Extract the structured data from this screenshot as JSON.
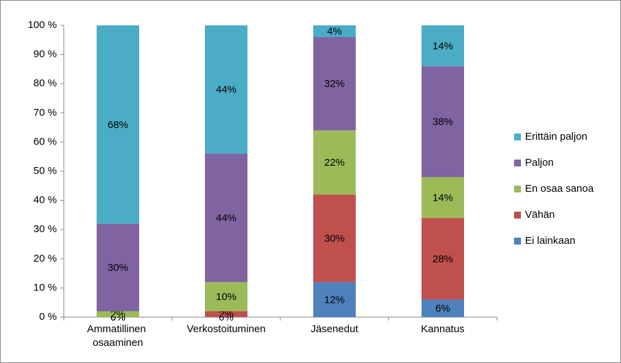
{
  "chart_data": {
    "type": "stacked_bar",
    "categories": [
      "Ammatillinen osaaminen",
      "Verkostoituminen",
      "Jäsenedut",
      "Kannatus"
    ],
    "series": [
      {
        "name": "Ei lainkaan",
        "color": "#4f81bd",
        "values": [
          0,
          0,
          12,
          6
        ],
        "value_labels": [
          "0%",
          "0%",
          "12%",
          "6%"
        ]
      },
      {
        "name": "Vähän",
        "color": "#c0504d",
        "values": [
          0,
          2,
          30,
          28
        ],
        "value_labels": [
          "0%",
          "2%",
          "30%",
          "28%"
        ]
      },
      {
        "name": "En osaa sanoa",
        "color": "#9bbb59",
        "values": [
          2,
          10,
          22,
          14
        ],
        "value_labels": [
          "2%",
          "10%",
          "22%",
          "14%"
        ]
      },
      {
        "name": "Paljon",
        "color": "#8064a2",
        "values": [
          30,
          44,
          32,
          38
        ],
        "value_labels": [
          "30%",
          "44%",
          "32%",
          "38%"
        ]
      },
      {
        "name": "Erittäin paljon",
        "color": "#4bacc6",
        "values": [
          68,
          44,
          4,
          14
        ],
        "value_labels": [
          "68%",
          "44%",
          "4%",
          "14%"
        ]
      }
    ],
    "ylim": [
      0,
      100
    ],
    "yticks": [
      {
        "value": 0,
        "label": "0 %"
      },
      {
        "value": 10,
        "label": "10 %"
      },
      {
        "value": 20,
        "label": "20 %"
      },
      {
        "value": 30,
        "label": "30 %"
      },
      {
        "value": 40,
        "label": "40 %"
      },
      {
        "value": 50,
        "label": "50 %"
      },
      {
        "value": 60,
        "label": "60 %"
      },
      {
        "value": 70,
        "label": "70 %"
      },
      {
        "value": 80,
        "label": "80 %"
      },
      {
        "value": 90,
        "label": "90 %"
      },
      {
        "value": 100,
        "label": "100 %"
      }
    ],
    "grid": false,
    "legend": "right"
  }
}
